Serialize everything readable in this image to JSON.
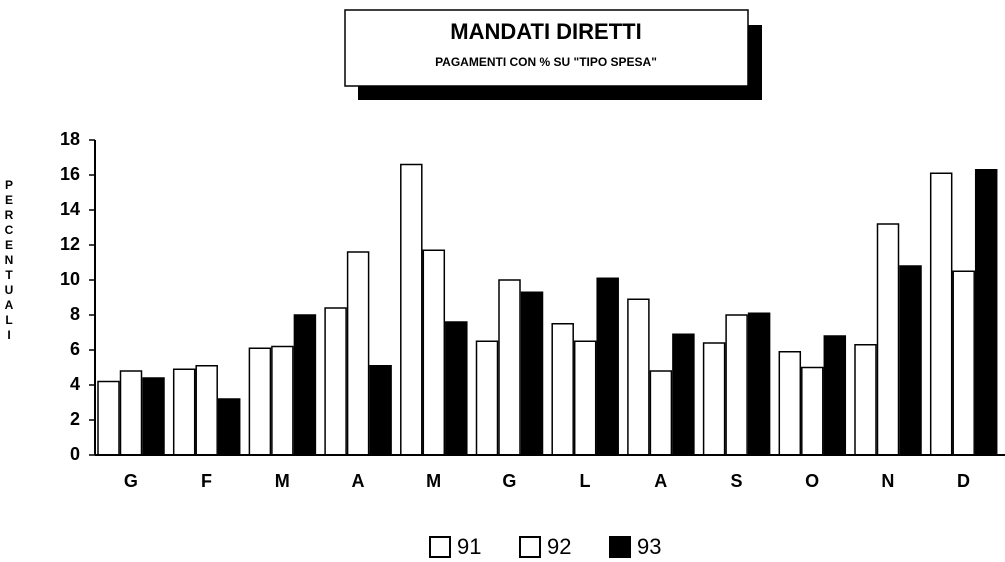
{
  "chart_data": {
    "type": "bar",
    "title": "MANDATI DIRETTI",
    "subtitle": "PAGAMENTI CON % SU \"TIPO SPESA\"",
    "y_label": "PERCENTUALI",
    "categories": [
      "G",
      "F",
      "M",
      "A",
      "M",
      "G",
      "L",
      "A",
      "S",
      "O",
      "N",
      "D"
    ],
    "series": [
      {
        "name": "91",
        "color": "#ffffff",
        "values": [
          4.2,
          4.9,
          6.1,
          8.4,
          16.6,
          6.5,
          7.5,
          8.9,
          6.4,
          5.9,
          6.3,
          16.1
        ]
      },
      {
        "name": "92",
        "color": "#ffffff",
        "values": [
          4.8,
          5.1,
          6.2,
          11.6,
          11.7,
          10.0,
          6.5,
          4.8,
          8.0,
          5.0,
          13.2,
          10.5
        ]
      },
      {
        "name": "93",
        "color": "#000000",
        "values": [
          4.4,
          3.2,
          8.0,
          5.1,
          7.6,
          9.3,
          10.1,
          6.9,
          8.1,
          6.8,
          10.8,
          16.3
        ]
      }
    ],
    "ylim": [
      0,
      18
    ],
    "yticks": [
      0,
      2,
      4,
      6,
      8,
      10,
      12,
      14,
      16,
      18
    ],
    "grid": false,
    "legend": "bottom"
  }
}
